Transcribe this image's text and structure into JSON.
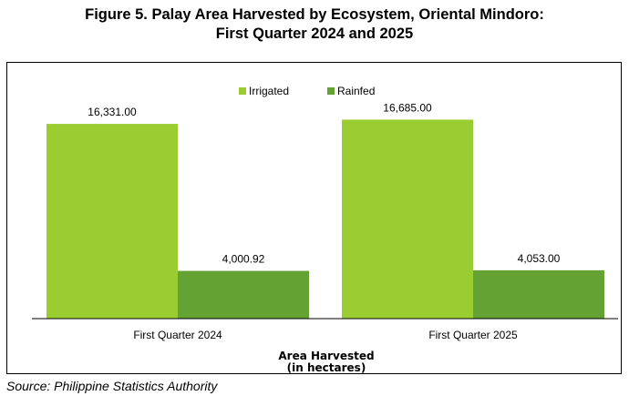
{
  "title_line1": "Figure 5. Palay Area Harvested by Ecosystem, Oriental Mindoro:",
  "title_line2": "First Quarter 2024 and 2025",
  "source": "Source: Philippine Statistics Authority",
  "chart_data": {
    "type": "bar",
    "categories": [
      "First Quarter 2024",
      "First Quarter 2025"
    ],
    "series": [
      {
        "name": "Irrigated",
        "values": [
          16331.0,
          16685.0
        ],
        "labels": [
          "16,331.00",
          "16,685.00"
        ],
        "color": "#9acd32"
      },
      {
        "name": "Rainfed",
        "values": [
          4000.92,
          4053.0
        ],
        "labels": [
          "4,000.92",
          "4,053.00"
        ],
        "color": "#64a233"
      }
    ],
    "xlabel_line1": "Area Harvested",
    "xlabel_line2": "(in hectares)",
    "ylim": [
      0,
      18000
    ],
    "legend_position": "top-center",
    "grid": false,
    "colors": {
      "irrigated": "#9acd32",
      "rainfed": "#64a233",
      "axis": "#000000"
    }
  }
}
